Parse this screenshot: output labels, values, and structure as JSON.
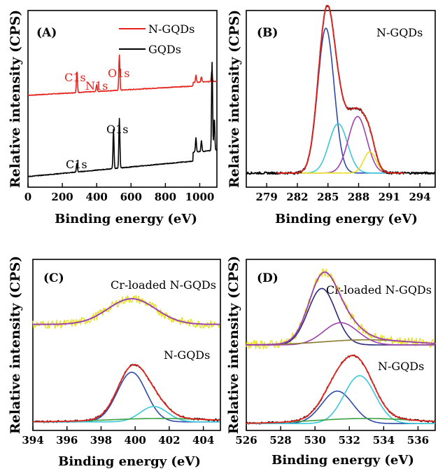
{
  "colors": {
    "ngqds": "#e8231e",
    "gqds": "#000000",
    "blue": "#2e4aa8",
    "navy": "#2a2a7a",
    "cyan": "#3cc8d8",
    "purple": "#a040b0",
    "yellow": "#e8e020",
    "green": "#3aa040",
    "olive": "#8a7a30",
    "black": "#000000"
  },
  "chart_data": [
    {
      "id": "A",
      "type": "line",
      "panel_label": "(A)",
      "xlabel": "Binding energy (eV)",
      "ylabel": "Relative intensity (CPS)",
      "xlim": [
        0,
        1100
      ],
      "xticks": [
        0,
        200,
        400,
        600,
        800,
        1000
      ],
      "legend": {
        "placement": "top-right",
        "entries": [
          "N-GQDs",
          "GQDs"
        ]
      },
      "series": [
        {
          "name": "N-GQDs",
          "color_key": "ngqds",
          "baseline": 0.52,
          "slope": 0.06,
          "peaks": [
            [
              285,
              0.12
            ],
            [
              400,
              0.04
            ],
            [
              532,
              0.2
            ],
            [
              978,
              0.04
            ],
            [
              1010,
              0.03
            ],
            [
              1070,
              0.06
            ]
          ]
        },
        {
          "name": "GQDs",
          "color_key": "gqds",
          "baseline": 0.06,
          "slope": 0.1,
          "peaks": [
            [
              285,
              0.05
            ],
            [
              498,
              0.22
            ],
            [
              532,
              0.28
            ],
            [
              978,
              0.08
            ],
            [
              1010,
              0.06
            ],
            [
              1072,
              0.5
            ],
            [
              1085,
              0.18
            ]
          ]
        }
      ],
      "annotations": [
        {
          "text": "C1s",
          "x": 285,
          "color_key": "ngqds"
        },
        {
          "text": "N1s",
          "x": 400,
          "color_key": "ngqds"
        },
        {
          "text": "O1s",
          "x": 532,
          "color_key": "ngqds"
        },
        {
          "text": "C1s",
          "x": 285,
          "color_key": "gqds"
        },
        {
          "text": "O1s",
          "x": 532,
          "color_key": "gqds"
        }
      ]
    },
    {
      "id": "B",
      "type": "line",
      "panel_label": "(B)",
      "title": "N-GQDs",
      "xlabel": "Binding energy (eV)",
      "ylabel": "Relative intensity (CPS)",
      "xlim": [
        277,
        295.5
      ],
      "xticks": [
        279,
        282,
        285,
        288,
        291,
        294
      ],
      "components": [
        {
          "color_key": "blue",
          "center": 284.8,
          "amp": 0.82,
          "width": 0.8
        },
        {
          "color_key": "cyan",
          "center": 286.0,
          "amp": 0.28,
          "width": 0.9
        },
        {
          "color_key": "purple",
          "center": 287.9,
          "amp": 0.32,
          "width": 0.9
        },
        {
          "color_key": "yellow",
          "center": 289.1,
          "amp": 0.12,
          "width": 0.6
        }
      ],
      "envelope_color_key": "ngqds",
      "raw_color_key": "black"
    },
    {
      "id": "C",
      "type": "line",
      "panel_label": "(C)",
      "xlabel": "Binding energy (eV)",
      "ylabel": "Relative intensity (CPS)",
      "xlim": [
        394,
        405
      ],
      "xticks": [
        394,
        396,
        398,
        400,
        402,
        404
      ],
      "spectra": [
        {
          "label": "Cr-loaded N-GQDs",
          "offset": 0.62,
          "raw_color_key": "yellow",
          "envelope_color_key": "purple",
          "components": [
            {
              "color_key": "navy",
              "center": 399.8,
              "amp": 0.15,
              "width": 1.4
            }
          ]
        },
        {
          "label": "N-GQDs",
          "offset": 0.05,
          "raw_color_key": "black",
          "envelope_color_key": "ngqds",
          "components": [
            {
              "color_key": "blue",
              "center": 399.8,
              "amp": 0.29,
              "width": 0.85
            },
            {
              "color_key": "cyan",
              "center": 401.1,
              "amp": 0.09,
              "width": 0.8
            },
            {
              "color_key": "green",
              "center": 401.5,
              "amp": 0.02,
              "width": 3.0
            }
          ]
        }
      ]
    },
    {
      "id": "D",
      "type": "line",
      "panel_label": "(D)",
      "xlabel": "Binding energy (eV)",
      "ylabel": "Relative intensity (CPS)",
      "xlim": [
        526,
        537
      ],
      "xticks": [
        526,
        528,
        530,
        532,
        534,
        536
      ],
      "spectra": [
        {
          "label": "Cr-loaded N-GQDs",
          "offset": 0.5,
          "raw_color_key": "yellow",
          "envelope_color_key": "purple",
          "components": [
            {
              "color_key": "navy",
              "center": 530.4,
              "amp": 0.33,
              "width": 0.8
            },
            {
              "color_key": "purple",
              "center": 531.5,
              "amp": 0.13,
              "width": 1.0
            },
            {
              "color_key": "olive",
              "center": 533.0,
              "amp": 0.03,
              "width": 2.5
            }
          ]
        },
        {
          "label": "N-GQDs",
          "offset": 0.04,
          "raw_color_key": "black",
          "envelope_color_key": "ngqds",
          "components": [
            {
              "color_key": "blue",
              "center": 531.3,
              "amp": 0.19,
              "width": 0.9
            },
            {
              "color_key": "cyan",
              "center": 532.6,
              "amp": 0.28,
              "width": 0.9
            },
            {
              "color_key": "green",
              "center": 533.0,
              "amp": 0.03,
              "width": 3.0
            }
          ]
        }
      ]
    }
  ]
}
